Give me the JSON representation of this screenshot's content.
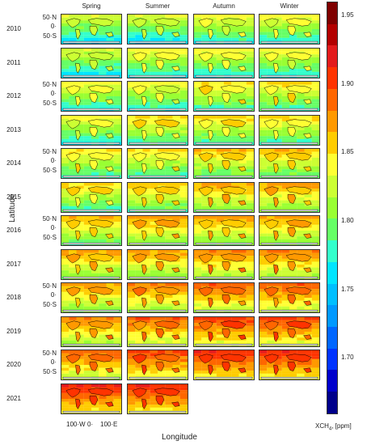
{
  "chart_data": {
    "type": "heatmap",
    "title": "",
    "xlabel": "Longitude",
    "ylabel": "Latitude",
    "seasons": [
      "Spring",
      "Summer",
      "Autumn",
      "Winter"
    ],
    "years": [
      "2010",
      "2011",
      "2012",
      "2013",
      "2014",
      "2015",
      "2016",
      "2017",
      "2018",
      "2019",
      "2020",
      "2021"
    ],
    "x_ticks": [
      "100·W",
      "0·",
      "100·E"
    ],
    "y_ticks": [
      "50·N",
      "0·",
      "50·S"
    ],
    "colorbar": {
      "label": "XCH",
      "label_sub": "4",
      "label_unit": ", [ppm]",
      "min": 1.66,
      "max": 1.96,
      "ticks": [
        "1.95",
        "1.90",
        "1.85",
        "1.80",
        "1.75",
        "1.70"
      ],
      "colors": [
        "#7f0000",
        "#b30000",
        "#e31a1c",
        "#ff3300",
        "#ff6600",
        "#ff9900",
        "#ffcc00",
        "#ffff33",
        "#ccff33",
        "#99ff33",
        "#66ff66",
        "#33ffcc",
        "#00e5ff",
        "#00bfff",
        "#0099ff",
        "#0066ff",
        "#0033ff",
        "#0000cc",
        "#00008b"
      ]
    },
    "panels_available": {
      "2021": [
        "Spring",
        "Summer"
      ]
    },
    "mean_xch4": {
      "2010": [
        1.8,
        1.8,
        1.81,
        1.81
      ],
      "2011": [
        1.8,
        1.81,
        1.81,
        1.81
      ],
      "2012": [
        1.81,
        1.81,
        1.82,
        1.82
      ],
      "2013": [
        1.81,
        1.82,
        1.82,
        1.82
      ],
      "2014": [
        1.82,
        1.82,
        1.83,
        1.83
      ],
      "2015": [
        1.82,
        1.83,
        1.84,
        1.84
      ],
      "2016": [
        1.83,
        1.84,
        1.84,
        1.84
      ],
      "2017": [
        1.84,
        1.84,
        1.85,
        1.85
      ],
      "2018": [
        1.84,
        1.85,
        1.86,
        1.86
      ],
      "2019": [
        1.85,
        1.86,
        1.87,
        1.87
      ],
      "2020": [
        1.86,
        1.87,
        1.88,
        1.88
      ],
      "2021": [
        1.88,
        1.88
      ]
    }
  }
}
